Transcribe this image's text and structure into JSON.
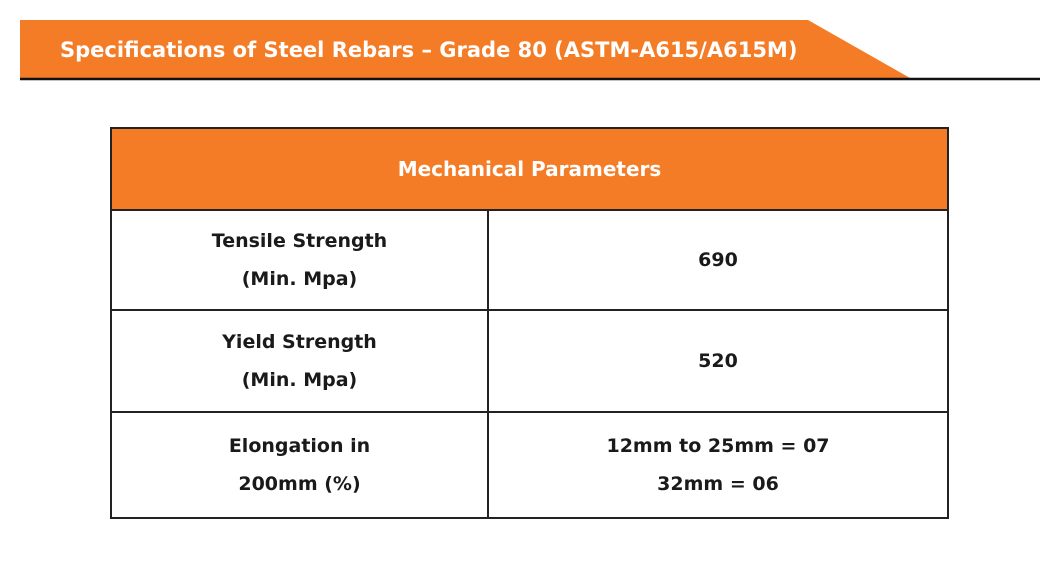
{
  "header": {
    "title": "Specifications of Steel Rebars – Grade 80 (ASTM-A615/A615M)"
  },
  "table": {
    "header": "Mechanical Parameters",
    "rows": [
      {
        "label": [
          "Tensile Strength",
          "(Min. Mpa)"
        ],
        "value": [
          "690"
        ]
      },
      {
        "label": [
          "Yield Strength",
          "(Min. Mpa)"
        ],
        "value": [
          "520"
        ]
      },
      {
        "label": [
          "Elongation in",
          "200mm (%)"
        ],
        "value": [
          "12mm to 25mm = 07",
          "32mm = 06"
        ]
      }
    ]
  }
}
